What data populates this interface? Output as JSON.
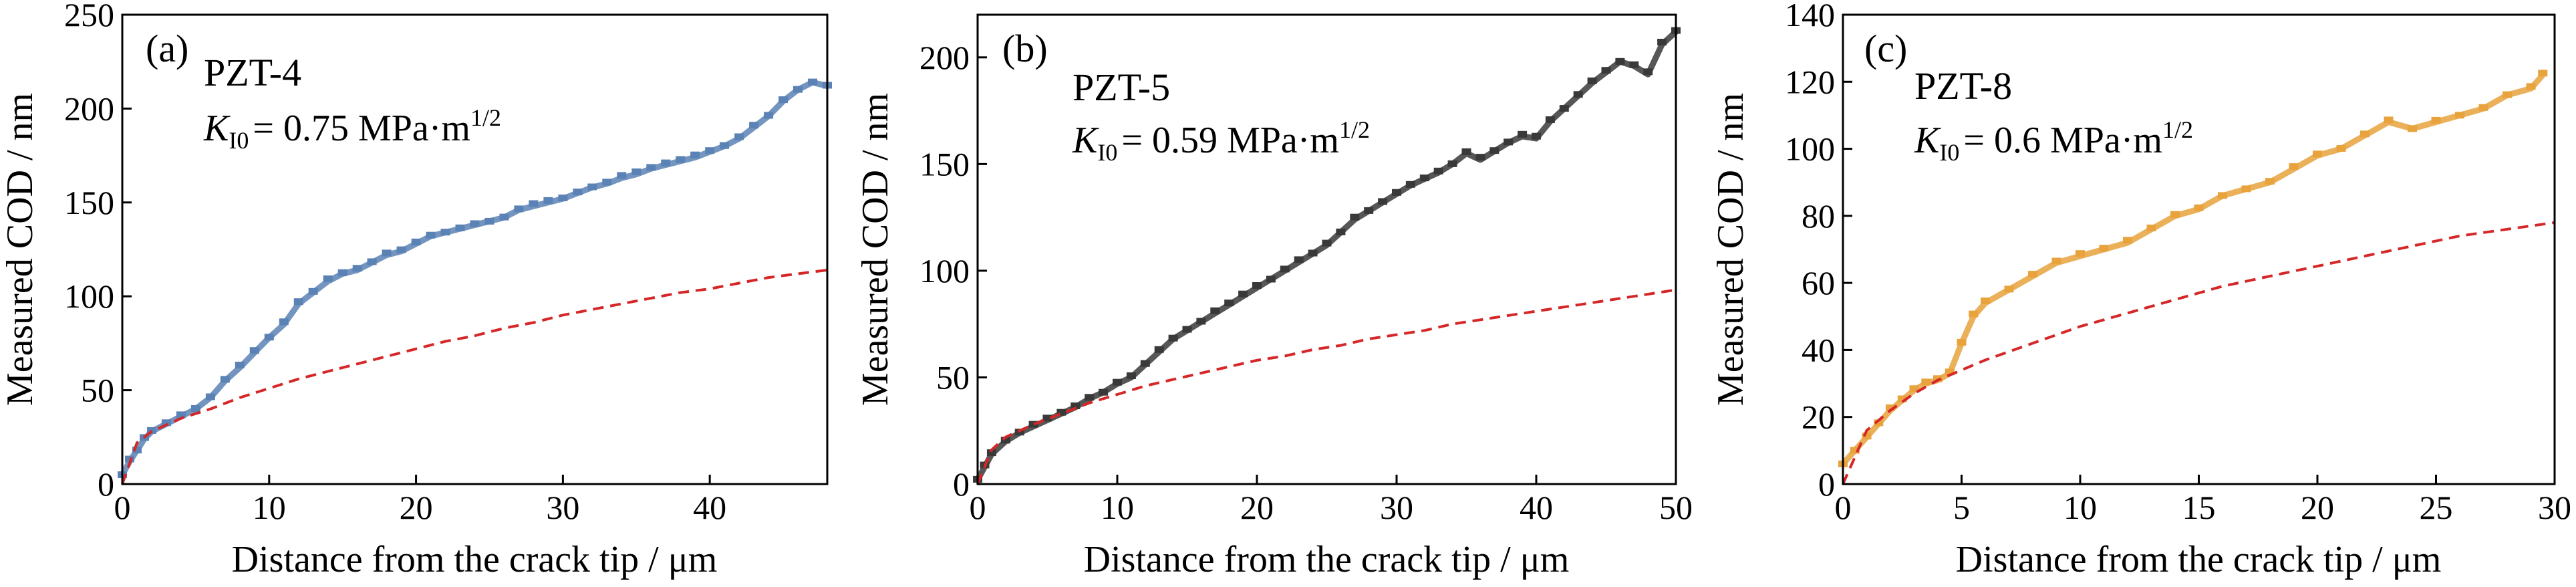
{
  "chart_data": [
    {
      "type": "scatter",
      "panel_label": "(a)",
      "material": "PZT-4",
      "k_symbol": "K",
      "k_subscript": "I0",
      "k_value_text": "= 0.75 MPa·m",
      "k_exponent": "1/2",
      "xlabel": "Distance from the crack tip / μm",
      "ylabel": "Measured COD / nm",
      "xlim": [
        0,
        48
      ],
      "ylim": [
        0,
        250
      ],
      "xticks": [
        0,
        10,
        20,
        30,
        40
      ],
      "yticks": [
        0,
        50,
        100,
        150,
        200,
        250
      ],
      "marker_color": "#5a82b4",
      "fit_color": "#d62728",
      "series": [
        {
          "kind": "measured",
          "x": [
            0,
            0.5,
            1,
            1.5,
            2,
            3,
            4,
            5,
            6,
            7,
            8,
            9,
            10,
            11,
            12,
            13,
            14,
            15,
            16,
            17,
            18,
            19,
            20,
            21,
            22,
            23,
            24,
            25,
            26,
            27,
            28,
            29,
            30,
            31,
            32,
            33,
            34,
            35,
            36,
            37,
            38,
            39,
            40,
            41,
            42,
            43,
            44,
            45,
            46,
            47,
            48
          ],
          "y": [
            5,
            12,
            18,
            24,
            28,
            32,
            36,
            40,
            46,
            55,
            62,
            70,
            78,
            85,
            96,
            102,
            108,
            112,
            114,
            118,
            122,
            124,
            128,
            132,
            134,
            136,
            138,
            140,
            142,
            146,
            148,
            150,
            152,
            155,
            158,
            160,
            163,
            165,
            168,
            170,
            172,
            174,
            177,
            180,
            184,
            190,
            196,
            204,
            210,
            214,
            212
          ]
        },
        {
          "kind": "dashed-fit",
          "x": [
            0,
            1,
            2,
            4,
            6,
            8,
            10,
            12,
            14,
            16,
            18,
            20,
            22,
            24,
            26,
            28,
            30,
            32,
            34,
            36,
            38,
            40,
            42,
            44,
            46,
            48
          ],
          "y": [
            0,
            22,
            28,
            35,
            40,
            46,
            51,
            56,
            60,
            64,
            68,
            72,
            76,
            79,
            83,
            86,
            90,
            93,
            96,
            99,
            102,
            104,
            107,
            110,
            112,
            114
          ]
        }
      ]
    },
    {
      "type": "scatter",
      "panel_label": "(b)",
      "material": "PZT-5",
      "k_symbol": "K",
      "k_subscript": "I0",
      "k_value_text": "= 0.59 MPa·m",
      "k_exponent": "1/2",
      "xlabel": "Distance from the crack tip / μm",
      "ylabel": "Measured COD / nm",
      "xlim": [
        0,
        50
      ],
      "ylim": [
        0,
        220
      ],
      "xticks": [
        0,
        10,
        20,
        30,
        40,
        50
      ],
      "yticks": [
        0,
        50,
        100,
        150,
        200
      ],
      "marker_color": "#3a3a3a",
      "fit_color": "#d62728",
      "series": [
        {
          "kind": "measured",
          "x": [
            0,
            0.5,
            1,
            2,
            3,
            4,
            5,
            6,
            7,
            8,
            9,
            10,
            11,
            12,
            13,
            14,
            15,
            16,
            17,
            18,
            19,
            20,
            21,
            22,
            23,
            24,
            25,
            26,
            27,
            28,
            29,
            30,
            31,
            32,
            33,
            34,
            35,
            36,
            37,
            38,
            39,
            40,
            41,
            42,
            43,
            44,
            45,
            46,
            47,
            48,
            49,
            50
          ],
          "y": [
            2,
            8,
            14,
            20,
            24,
            27,
            30,
            33,
            36,
            40,
            43,
            47,
            50,
            56,
            62,
            68,
            72,
            76,
            80,
            84,
            88,
            92,
            96,
            100,
            104,
            108,
            112,
            118,
            124,
            128,
            132,
            136,
            140,
            143,
            146,
            150,
            155,
            152,
            156,
            160,
            163,
            162,
            170,
            176,
            182,
            188,
            193,
            198,
            196,
            192,
            206,
            212
          ]
        },
        {
          "kind": "dashed-fit",
          "x": [
            0,
            1,
            2,
            4,
            6,
            8,
            10,
            12,
            14,
            16,
            18,
            20,
            22,
            24,
            26,
            28,
            30,
            32,
            34,
            36,
            38,
            40,
            42,
            44,
            46,
            48,
            50
          ],
          "y": [
            0,
            16,
            22,
            28,
            33,
            38,
            42,
            46,
            49,
            52,
            55,
            58,
            60,
            63,
            65,
            68,
            70,
            72,
            75,
            77,
            79,
            81,
            83,
            85,
            87,
            89,
            91
          ]
        }
      ]
    },
    {
      "type": "scatter",
      "panel_label": "(c)",
      "material": "PZT-8",
      "k_symbol": "K",
      "k_subscript": "I0",
      "k_value_text": "= 0.6 MPa·m",
      "k_exponent": "1/2",
      "xlabel": "Distance from the crack tip / μm",
      "ylabel": "Measured COD / nm",
      "xlim": [
        0,
        30
      ],
      "ylim": [
        0,
        140
      ],
      "xticks": [
        0,
        5,
        10,
        15,
        20,
        25,
        30
      ],
      "yticks": [
        0,
        20,
        40,
        60,
        80,
        100,
        120,
        140
      ],
      "marker_color": "#e8a33d",
      "fit_color": "#d62728",
      "series": [
        {
          "kind": "measured",
          "x": [
            0,
            0.5,
            1,
            1.5,
            2,
            2.5,
            3,
            3.5,
            4,
            4.5,
            5,
            5.5,
            6,
            7,
            8,
            9,
            10,
            11,
            12,
            13,
            14,
            15,
            16,
            17,
            18,
            19,
            20,
            21,
            22,
            23,
            24,
            25,
            26,
            27,
            28,
            29,
            29.5
          ],
          "y": [
            6,
            10,
            14,
            18,
            22,
            25,
            28,
            30,
            31,
            33,
            42,
            50,
            54,
            58,
            62,
            66,
            68,
            70,
            72,
            76,
            80,
            82,
            86,
            88,
            90,
            94,
            98,
            100,
            104,
            108,
            106,
            108,
            110,
            112,
            116,
            118,
            122
          ]
        },
        {
          "kind": "dashed-fit",
          "x": [
            0,
            1,
            2,
            3,
            4,
            5,
            6,
            8,
            10,
            12,
            14,
            16,
            18,
            20,
            22,
            24,
            26,
            28,
            30
          ],
          "y": [
            0,
            16,
            22,
            27,
            31,
            34,
            37,
            42,
            47,
            51,
            55,
            59,
            62,
            65,
            68,
            71,
            74,
            76,
            78
          ]
        }
      ]
    }
  ]
}
